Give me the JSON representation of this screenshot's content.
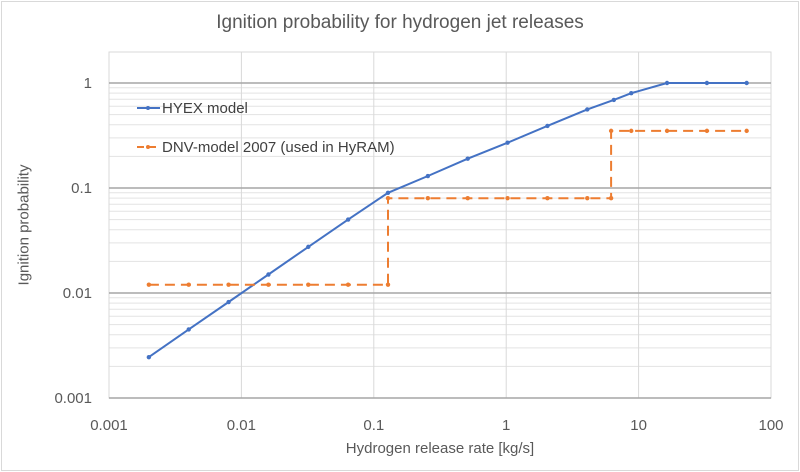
{
  "chart_data": {
    "type": "line",
    "title": "Ignition probability for hydrogen jet releases",
    "xlabel": "Hydrogen release rate [kg/s]",
    "ylabel": "Ignition probability",
    "xscale": "log",
    "yscale": "log",
    "xlim": [
      0.001,
      100
    ],
    "ylim": [
      0.001,
      1
    ],
    "xticks": [
      "0.001",
      "0.01",
      "0.1",
      "1",
      "10",
      "100"
    ],
    "yticks": [
      "0.001",
      "0.01",
      "0.1",
      "1"
    ],
    "grid": true,
    "legend_position": "top-left",
    "series": [
      {
        "name": "HYEX model",
        "color": "#4472c4",
        "style": "solid",
        "points": [
          [
            0.002,
            0.00245
          ],
          [
            0.004,
            0.0045
          ],
          [
            0.008,
            0.0082
          ],
          [
            0.016,
            0.015
          ],
          [
            0.032,
            0.0275
          ],
          [
            0.064,
            0.05
          ],
          [
            0.128,
            0.09
          ],
          [
            0.256,
            0.13
          ],
          [
            0.512,
            0.19
          ],
          [
            1.024,
            0.27
          ],
          [
            2.048,
            0.39
          ],
          [
            4.096,
            0.56
          ],
          [
            6.5,
            0.69
          ],
          [
            8.8,
            0.8
          ],
          [
            16.4,
            1.0
          ],
          [
            32.8,
            1.0
          ],
          [
            65.5,
            1.0
          ]
        ]
      },
      {
        "name": "DNV-model 2007 (used in HyRAM)",
        "color": "#ed7d31",
        "style": "dashed",
        "points": [
          [
            0.002,
            0.012
          ],
          [
            0.004,
            0.012
          ],
          [
            0.008,
            0.012
          ],
          [
            0.016,
            0.012
          ],
          [
            0.032,
            0.012
          ],
          [
            0.064,
            0.012
          ],
          [
            0.128,
            0.012
          ],
          [
            0.128,
            0.08
          ],
          [
            0.256,
            0.08
          ],
          [
            0.512,
            0.08
          ],
          [
            1.024,
            0.08
          ],
          [
            2.048,
            0.08
          ],
          [
            4.096,
            0.08
          ],
          [
            6.2,
            0.08
          ],
          [
            6.2,
            0.35
          ],
          [
            8.8,
            0.35
          ],
          [
            16.4,
            0.35
          ],
          [
            32.8,
            0.35
          ],
          [
            65.5,
            0.35
          ]
        ]
      }
    ]
  }
}
